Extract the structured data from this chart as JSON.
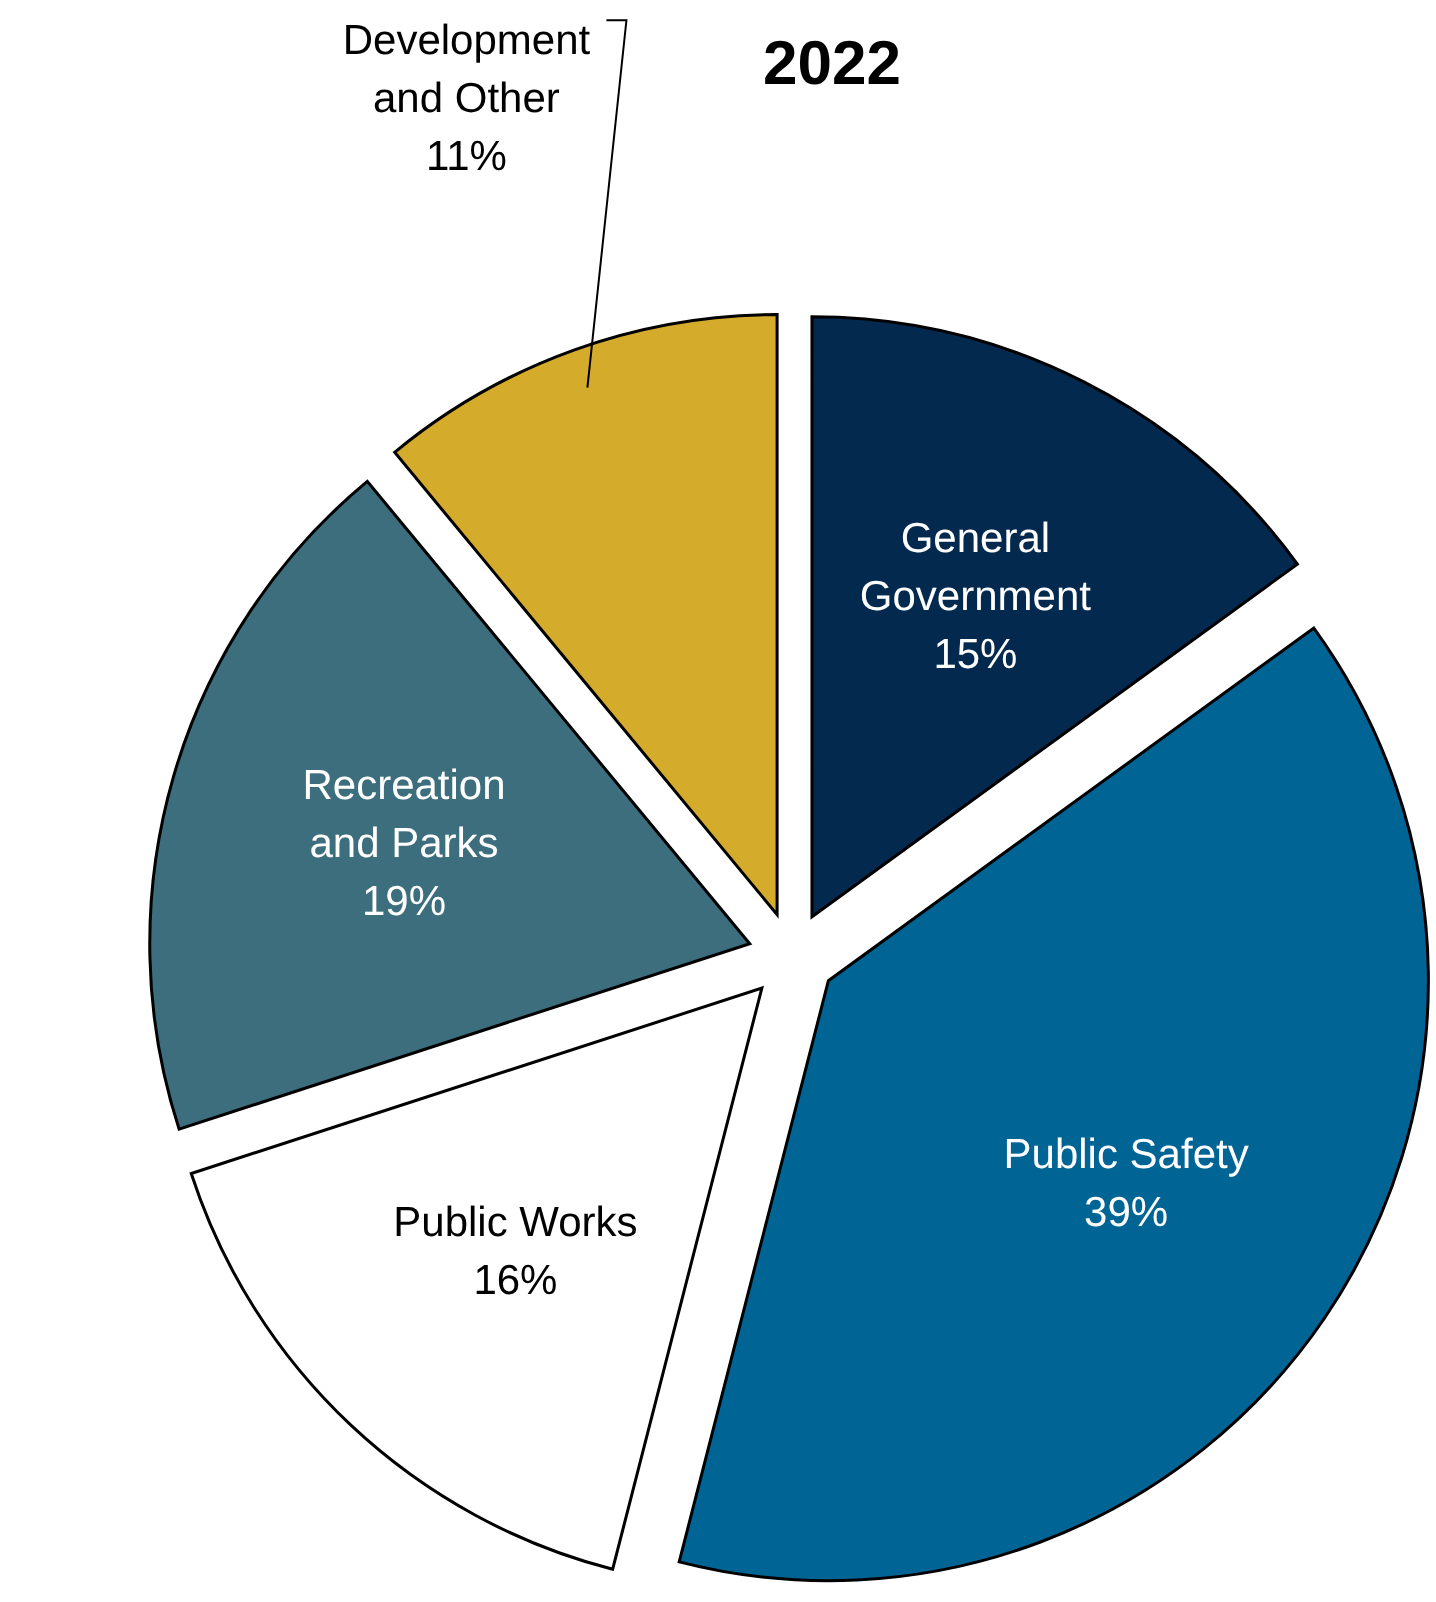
{
  "chart_data": {
    "type": "pie",
    "title": "2022",
    "categories": [
      "General Government",
      "Public Safety",
      "Public Works",
      "Recreation and Parks",
      "Development and Other"
    ],
    "values": [
      15,
      39,
      16,
      19,
      11
    ],
    "value_labels": [
      "15%",
      "39%",
      "16%",
      "19%",
      "11%"
    ],
    "colors": [
      "#03294f",
      "#006495",
      "#ffffff",
      "#3c6e7d",
      "#d4ab2b"
    ]
  }
}
